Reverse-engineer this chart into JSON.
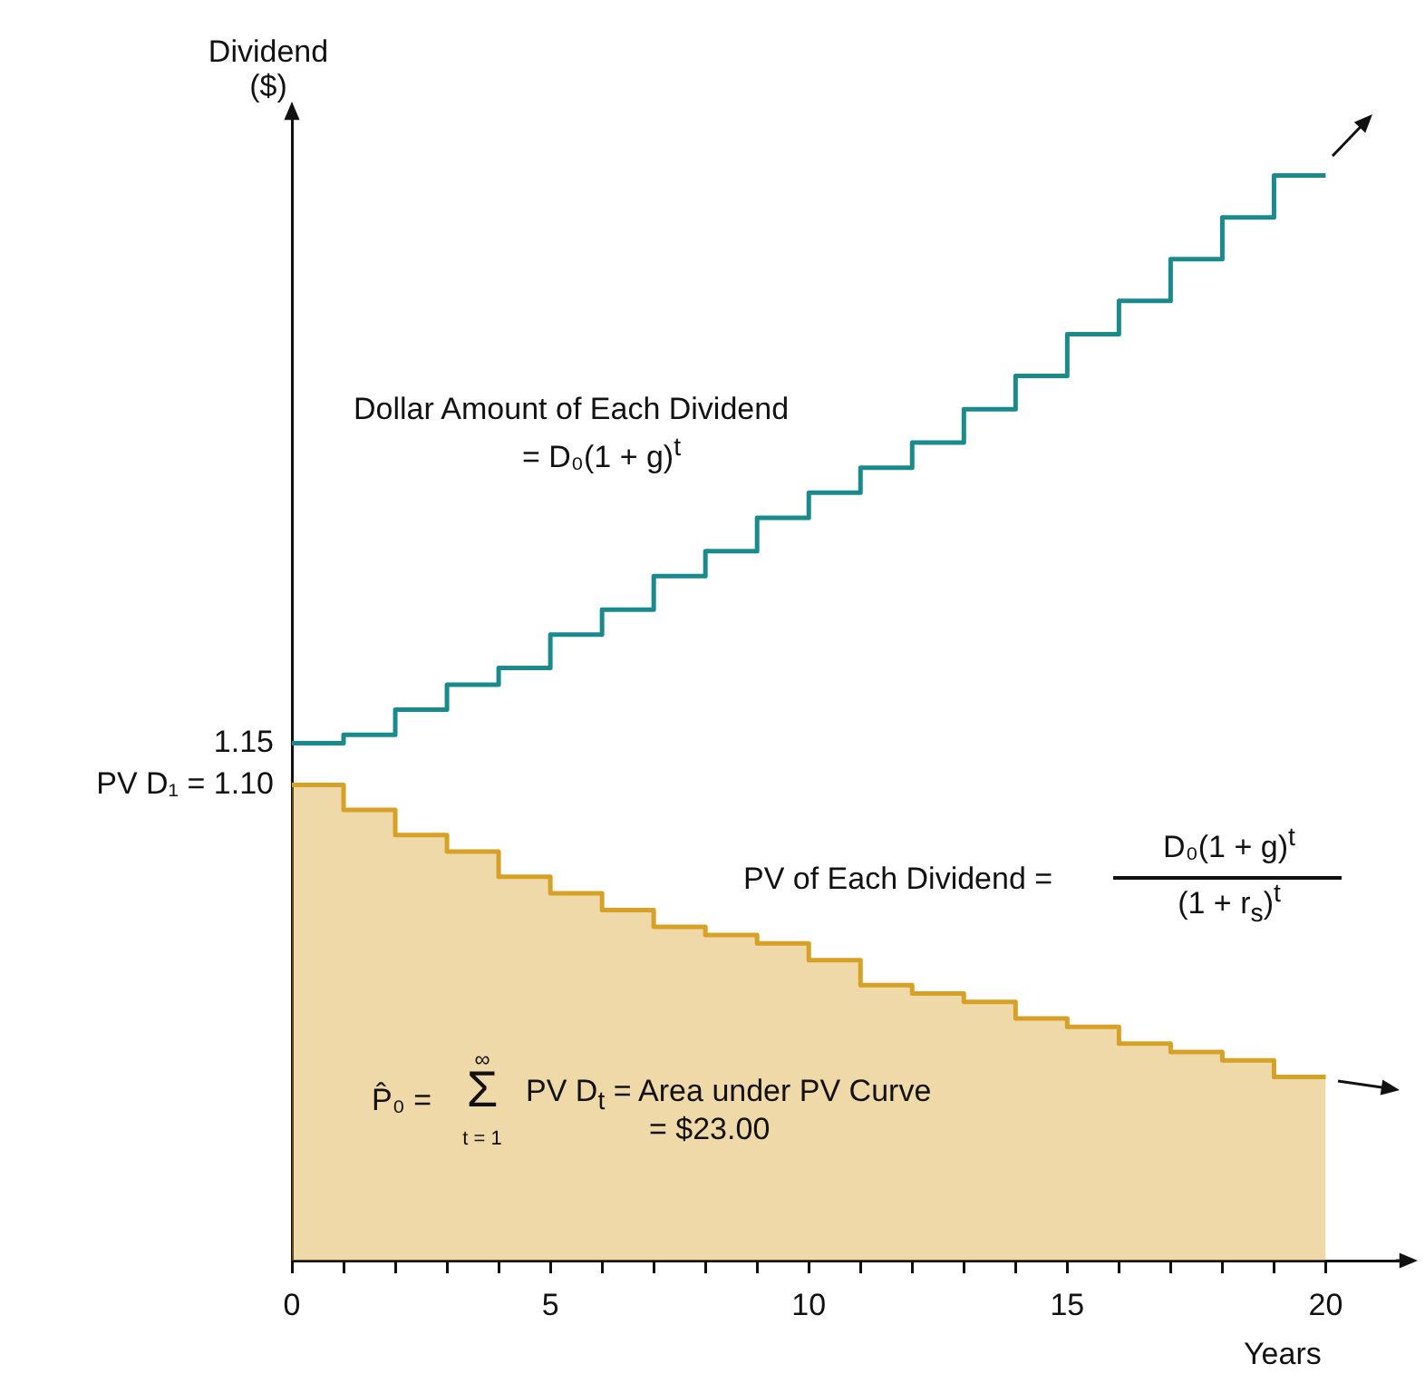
{
  "chart_data": {
    "type": "step",
    "xlabel": "Years",
    "ylabel": "Dividend\n($)",
    "x": [
      0,
      1,
      2,
      3,
      4,
      5,
      6,
      7,
      8,
      9,
      10,
      11,
      12,
      13,
      14,
      15,
      16,
      17,
      18,
      19,
      20
    ],
    "series": [
      {
        "color": "#1b8a8c",
        "values": [
          1.15,
          1.16,
          1.19,
          1.22,
          1.24,
          1.28,
          1.31,
          1.35,
          1.38,
          1.42,
          1.45,
          1.48,
          1.51,
          1.55,
          1.59,
          1.64,
          1.68,
          1.73,
          1.78,
          1.83,
          1.83
        ]
      },
      {
        "type": "area",
        "color": "#d6a126",
        "x": [
          0,
          1,
          1,
          2,
          2,
          3,
          3,
          4,
          4,
          5,
          5,
          6,
          6,
          7,
          7,
          8,
          8,
          9,
          9,
          10,
          10,
          11,
          11,
          12,
          12,
          13,
          13,
          14,
          14,
          15,
          15,
          16,
          16,
          17,
          17,
          18,
          18,
          19,
          19,
          20
        ],
        "values": [
          1.1,
          1.1,
          1.07,
          1.07,
          1.04,
          1.04,
          1.02,
          1.02,
          0.99,
          0.99,
          0.97,
          0.97,
          0.95,
          0.95,
          0.93,
          0.93,
          0.92,
          0.92,
          0.91,
          0.91,
          0.89,
          0.89,
          0.86,
          0.86,
          0.85,
          0.85,
          0.84,
          0.84,
          0.82,
          0.82,
          0.81,
          0.81,
          0.79,
          0.79,
          0.78,
          0.78,
          0.77,
          0.77,
          0.75,
          0.75
        ]
      }
    ],
    "xlim": [
      0,
      21.5
    ],
    "xticks": [
      0,
      {
        "value": 1,
        "label": null
      },
      {
        "value": 2,
        "label": null
      },
      {
        "value": 3,
        "label": null
      },
      {
        "value": 4,
        "label": null
      },
      5,
      {
        "value": 6,
        "label": null
      },
      {
        "value": 7,
        "label": null
      },
      {
        "value": 8,
        "label": null
      },
      {
        "value": 9,
        "label": null
      },
      10,
      {
        "value": 11,
        "label": null
      },
      {
        "value": 12,
        "label": null
      },
      {
        "value": 13,
        "label": null
      },
      {
        "value": 14,
        "label": null
      },
      15,
      {
        "value": 16,
        "label": null
      },
      {
        "value": 17,
        "label": null
      },
      {
        "value": 18,
        "label": null
      },
      {
        "value": 19,
        "label": null
      },
      20
    ],
    "ylim": [
      0.53,
      1.91
    ],
    "yticks": [
      {
        "value": 1.15,
        "label": "1.15"
      },
      {
        "value": 1.1,
        "label": "PV D₁ = 1.10"
      }
    ],
    "grid": false,
    "legend": false,
    "annotations": [
      "Dollar Amount of Each Dividend",
      "= D₀(1 + g)$^{t}$",
      "PV of Each Dividend  =",
      "D₀(1 + g)$^{t}$",
      "(1 + r$_{s}$)$^{t}$",
      "P̂₀  =",
      "∞",
      "Σ",
      "t = 1",
      "PV D$_{t}$ = Area under PV Curve",
      "= $23.00"
    ]
  }
}
